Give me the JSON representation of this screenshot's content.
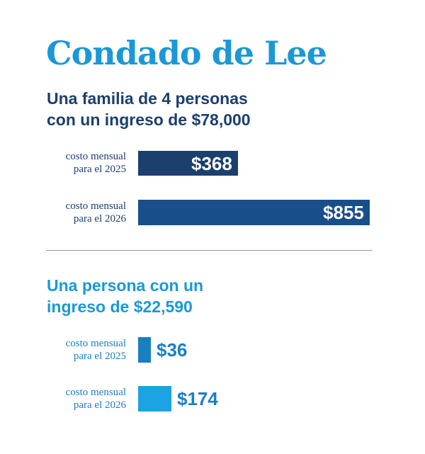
{
  "title": "Condado de Lee",
  "colors": {
    "title": "#1b98d6",
    "section1_text": "#1c3f6e",
    "section2_text": "#1b98d6",
    "bar_2025_family": "#1c3f6e",
    "bar_2026_family": "#1a4e8a",
    "bar_2025_single": "#1a7fc0",
    "bar_2026_single": "#1ba3e3"
  },
  "chart_data": [
    {
      "type": "bar",
      "orientation": "horizontal",
      "title_lines": [
        "Una familia de 4 personas",
        "con un ingreso de $78,000"
      ],
      "rows": [
        {
          "label_lines": [
            "costo mensual",
            "para el 2025"
          ],
          "value": 368,
          "value_label": "$368"
        },
        {
          "label_lines": [
            "costo mensual",
            "para el 2026"
          ],
          "value": 855,
          "value_label": "$855"
        }
      ]
    },
    {
      "type": "bar",
      "orientation": "horizontal",
      "title_lines": [
        "Una persona con un",
        "ingreso de $22,590"
      ],
      "rows": [
        {
          "label_lines": [
            "costo mensual",
            "para el 2025"
          ],
          "value": 36,
          "value_label": "$36"
        },
        {
          "label_lines": [
            "costo mensual",
            "para el 2026"
          ],
          "value": 174,
          "value_label": "$174"
        }
      ]
    }
  ]
}
